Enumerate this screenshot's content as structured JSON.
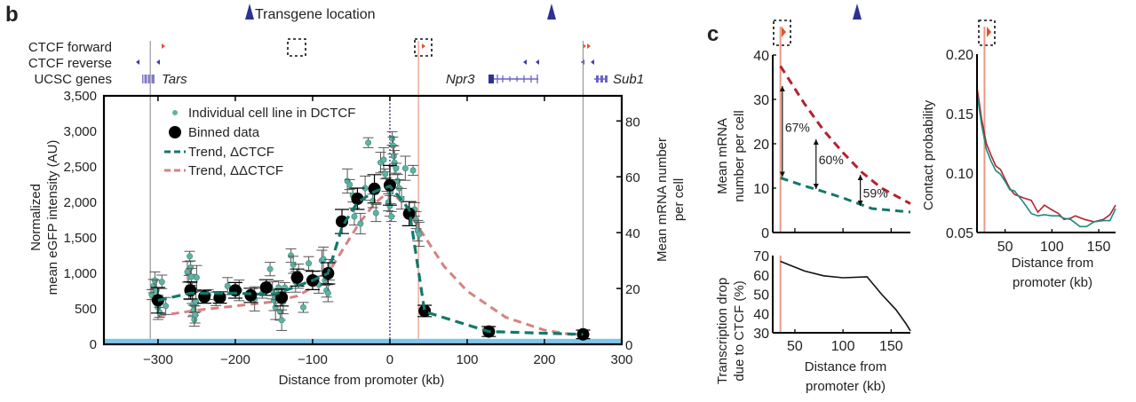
{
  "panel_labels": {
    "b": "b",
    "c": "c"
  },
  "track": {
    "transgene_label": "Transgene location",
    "rows": [
      "CTCF forward",
      "CTCF reverse",
      "UCSC genes"
    ],
    "genes": [
      "Tars",
      "Npr3",
      "Sub1"
    ],
    "colors": {
      "forward": "#e0542a",
      "reverse": "#3b3fa0",
      "gene": "#6b63c6",
      "transgene": "#2e3192"
    }
  },
  "chart_data": [
    {
      "id": "panel-b",
      "type": "scatter",
      "title": "",
      "xlabel": "Distance from promoter (kb)",
      "ylabel": "Normalized mean eGFP intensity (AU)",
      "y2label": "Mean mRNA number per cell",
      "xlim": [
        -370,
        300
      ],
      "ylim": [
        0,
        3500
      ],
      "y2lim": [
        0,
        89
      ],
      "xticks": [
        -300,
        -200,
        -100,
        0,
        100,
        200,
        300
      ],
      "xtick_labels": [
        "−300",
        "−200",
        "−100",
        "0",
        "100",
        "200",
        "300"
      ],
      "yticks": [
        0,
        500,
        1000,
        1500,
        2000,
        2500,
        3000,
        3500
      ],
      "ytick_labels": [
        "0",
        "500",
        "1,000",
        "1,500",
        "2,000",
        "2,500",
        "3,000",
        "3,500"
      ],
      "y2ticks": [
        0,
        20,
        40,
        60,
        80
      ],
      "y2tick_labels": [
        "0",
        "20",
        "40",
        "60",
        "80"
      ],
      "grid": false,
      "legend_position": "top-left",
      "legend": [
        {
          "label": "Individual cell line in DCTCF",
          "marker": "small-dot",
          "color": "#5fb3a3"
        },
        {
          "label": "Binned data",
          "marker": "large-dot",
          "color": "#000000"
        },
        {
          "label": "Trend, ΔCTCF",
          "marker": "dash",
          "color": "#12786a"
        },
        {
          "label": "Trend, ΔΔCTCF",
          "marker": "dash",
          "color": "#d98080"
        }
      ],
      "vertical_lines": [
        {
          "x": -310,
          "color": "#999999",
          "style": "solid"
        },
        {
          "x": 0,
          "color": "#2e3192",
          "style": "dotted"
        },
        {
          "x": 37,
          "color": "#e89a86",
          "style": "solid"
        },
        {
          "x": 250,
          "color": "#999999",
          "style": "solid"
        }
      ],
      "baseline_band": {
        "y": 40,
        "color": "#7cc6ee"
      },
      "binned": {
        "x": [
          -300,
          -258,
          -240,
          -220,
          -200,
          -180,
          -160,
          -140,
          -120,
          -100,
          -80,
          -62,
          -42,
          -20,
          0,
          25,
          45,
          128,
          250
        ],
        "y": [
          620,
          760,
          670,
          660,
          760,
          690,
          800,
          660,
          940,
          900,
          1000,
          1730,
          2050,
          2190,
          2240,
          1840,
          470,
          180,
          140
        ],
        "err": [
          180,
          120,
          90,
          80,
          110,
          100,
          110,
          120,
          120,
          130,
          150,
          170,
          150,
          200,
          280,
          170,
          80,
          70,
          60
        ]
      },
      "individual": {
        "x": [
          -308,
          -306,
          -304,
          -302,
          -300,
          -298,
          -295,
          -290,
          -262,
          -260,
          -259,
          -258,
          -257,
          -256,
          -255,
          -254,
          -253,
          -252,
          -251,
          -250,
          -235,
          -225,
          -210,
          -195,
          -175,
          -165,
          -155,
          -152,
          -150,
          -148,
          -146,
          -144,
          -142,
          -140,
          -138,
          -136,
          -128,
          -125,
          -122,
          -118,
          -112,
          -105,
          -92,
          -88,
          -86,
          -84,
          -82,
          -80,
          -78,
          -55,
          -52,
          -48,
          -46,
          -38,
          -32,
          -28,
          -22,
          -18,
          -12,
          -8,
          -6,
          -4,
          -2,
          0,
          1,
          2,
          3,
          4,
          5,
          6,
          8,
          10,
          12,
          15,
          20,
          30,
          32,
          34,
          36,
          38
        ],
        "y": [
          700,
          820,
          900,
          760,
          520,
          450,
          880,
          540,
          1020,
          800,
          1240,
          1080,
          950,
          720,
          560,
          480,
          350,
          420,
          600,
          940,
          700,
          640,
          820,
          760,
          640,
          720,
          1060,
          760,
          620,
          520,
          700,
          800,
          460,
          340,
          600,
          800,
          1250,
          1120,
          880,
          960,
          520,
          1140,
          840,
          1180,
          1200,
          900,
          760,
          720,
          1050,
          2300,
          2250,
          2100,
          1800,
          1700,
          2200,
          2840,
          2020,
          1850,
          2560,
          2600,
          2400,
          2250,
          2000,
          1950,
          2150,
          1800,
          2900,
          2800,
          2650,
          2560,
          2480,
          2300,
          2200,
          2050,
          2480,
          2450,
          1900,
          1750,
          1600,
          1550
        ]
      },
      "trend_dCTCF": {
        "x": [
          -300,
          -258,
          -200,
          -150,
          -120,
          -100,
          -80,
          -62,
          -42,
          -20,
          0,
          25,
          45,
          128,
          250
        ],
        "y": [
          620,
          720,
          720,
          700,
          820,
          900,
          1000,
          1650,
          2000,
          2150,
          2230,
          1900,
          460,
          180,
          140
        ]
      },
      "trend_ddCTCF": {
        "x": [
          -300,
          -250,
          -200,
          -150,
          -120,
          -100,
          -80,
          -60,
          -40,
          -20,
          0,
          20,
          40,
          70,
          100,
          150,
          200,
          240
        ],
        "y": [
          400,
          480,
          540,
          600,
          680,
          800,
          1000,
          1350,
          1700,
          1980,
          2170,
          1950,
          1600,
          1100,
          750,
          380,
          200,
          130
        ]
      }
    },
    {
      "id": "panel-c-top",
      "type": "line",
      "xlabel": "",
      "ylabel": "Mean mRNA number per cell",
      "xlim": [
        27,
        170
      ],
      "ylim": [
        0,
        40
      ],
      "xticks": [
        50,
        100,
        150
      ],
      "yticks": [
        0,
        10,
        20,
        30,
        40
      ],
      "ytick_labels": [
        "0",
        "10",
        "20",
        "30",
        "40"
      ],
      "series": [
        {
          "name": "ΔΔCTCF",
          "color": "#b5222e",
          "style": "dashed",
          "x": [
            35,
            60,
            80,
            100,
            120,
            140,
            170
          ],
          "y": [
            37.5,
            29,
            23,
            18,
            13.5,
            10,
            6.5
          ]
        },
        {
          "name": "ΔCTCF",
          "color": "#12786a",
          "style": "dashed",
          "x": [
            35,
            60,
            80,
            100,
            130,
            150,
            170
          ],
          "y": [
            12.3,
            10.5,
            9.2,
            7.8,
            5.4,
            5,
            4.6
          ]
        }
      ],
      "annotations": [
        {
          "label": "67%",
          "x": 37,
          "y_top": 33,
          "y_bottom": 12.5
        },
        {
          "label": "60%",
          "x": 72,
          "y_top": 21,
          "y_bottom": 9.8
        },
        {
          "label": "59%",
          "x": 118,
          "y_top": 13,
          "y_bottom": 6
        }
      ],
      "vertical_line": {
        "x": 35,
        "color": "#e89a86"
      }
    },
    {
      "id": "panel-c-bottom",
      "type": "line",
      "xlabel": "Distance from promoter (kb)",
      "ylabel": "Transcription drop due to CTCF (%)",
      "xlim": [
        27,
        170
      ],
      "ylim": [
        30,
        70
      ],
      "xticks": [
        50,
        100,
        150
      ],
      "xtick_labels": [
        "50",
        "100",
        "150"
      ],
      "yticks": [
        30,
        40,
        50,
        60,
        70
      ],
      "ytick_labels": [
        "30",
        "40",
        "50",
        "60",
        "70"
      ],
      "series": [
        {
          "name": "drop",
          "color": "#111111",
          "x": [
            35,
            45,
            60,
            80,
            100,
            125,
            140,
            155,
            165,
            170
          ],
          "y": [
            67,
            65,
            62,
            59.5,
            58.5,
            59,
            50,
            42,
            35,
            31
          ]
        }
      ],
      "vertical_line": {
        "x": 35,
        "color": "#e89a86"
      }
    },
    {
      "id": "panel-c-right",
      "type": "line",
      "xlabel": "Distance from promoter (kb)",
      "ylabel": "Contact probability",
      "xlim": [
        20,
        168
      ],
      "ylim": [
        0.05,
        0.2
      ],
      "xticks": [
        50,
        100,
        150
      ],
      "xtick_labels": [
        "50",
        "100",
        "150"
      ],
      "yticks": [
        0.05,
        0.1,
        0.15,
        0.2
      ],
      "ytick_labels": [
        "0.05",
        "0.10",
        "0.15",
        "0.20"
      ],
      "series": [
        {
          "name": "red",
          "color": "#b5222e",
          "x": [
            20,
            25,
            30,
            35,
            40,
            45,
            50,
            55,
            60,
            70,
            78,
            85,
            92,
            100,
            107,
            113,
            120,
            125,
            135,
            145,
            155,
            162,
            168
          ],
          "y": [
            0.172,
            0.145,
            0.125,
            0.115,
            0.106,
            0.103,
            0.095,
            0.087,
            0.082,
            0.079,
            0.077,
            0.067,
            0.073,
            0.069,
            0.066,
            0.061,
            0.062,
            0.064,
            0.061,
            0.059,
            0.061,
            0.065,
            0.073
          ]
        },
        {
          "name": "teal",
          "color": "#1f8a7e",
          "x": [
            20,
            25,
            30,
            35,
            40,
            45,
            50,
            55,
            60,
            70,
            78,
            85,
            92,
            100,
            107,
            113,
            120,
            125,
            130,
            137,
            145,
            155,
            162,
            168
          ],
          "y": [
            0.167,
            0.14,
            0.12,
            0.11,
            0.102,
            0.099,
            0.093,
            0.086,
            0.085,
            0.075,
            0.066,
            0.064,
            0.065,
            0.064,
            0.064,
            0.062,
            0.061,
            0.058,
            0.055,
            0.055,
            0.059,
            0.06,
            0.06,
            0.07
          ]
        }
      ],
      "vertical_line": {
        "x": 28,
        "color": "#e89a86"
      }
    }
  ]
}
